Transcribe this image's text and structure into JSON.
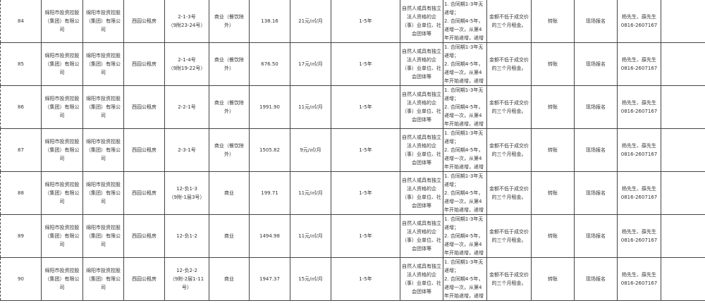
{
  "rows": [
    {
      "no": "84",
      "c1": "绵阳市投资控股（集团）有限公司",
      "c2": "绵阳市投资控股（集团）有限公司",
      "type": "西园公租房",
      "addr": "2-1-3号",
      "addr2": "（9附23-24号）",
      "use": "商业（餐饮除外）",
      "area": "138.16",
      "price": "21元/㎡/月",
      "term": "1-5年",
      "qual": "自然人或具有独立法人资格的企（事）业单位、社会团体等",
      "rent": [
        "1. 合同期1-3年无递增；",
        "2. 合同期4-5年，递增一次，从第4年开始递增，递增率5%，第5年不递增。"
      ],
      "deposit": "金额不低于成交价的三个月租金。",
      "method": "转账",
      "signup": "现场报名",
      "contact": "杨先生、薛先生",
      "phone": "0816-2607167",
      "extra": ""
    },
    {
      "no": "85",
      "c1": "绵阳市投资控股（集团）有限公司",
      "c2": "绵阳市投资控股（集团）有限公司",
      "type": "西园公租房",
      "addr": "2-1-4号",
      "addr2": "（9附19-22号）",
      "use": "商业（餐饮除外）",
      "area": "676.50",
      "price": "17元/㎡/月",
      "term": "1-5年",
      "qual": "自然人或具有独立法人资格的企（事）业单位、社会团体等",
      "rent": [
        "1. 合同期1-3年无递增；",
        "2. 合同期4-5年，递增一次，从第4年开始递增，递增率5%，第5年不递增。"
      ],
      "deposit": "金额不低于成交价的三个月租金。",
      "method": "转账",
      "signup": "现场报名",
      "contact": "杨先生、薛先生",
      "phone": "0816-2607167",
      "extra": ""
    },
    {
      "no": "86",
      "c1": "绵阳市投资控股（集团）有限公司",
      "c2": "绵阳市投资控股（集团）有限公司",
      "type": "西园公租房",
      "addr": "2-2-1号",
      "addr2": "",
      "use": "商业（餐饮除外）",
      "area": "1991.90",
      "price": "11元/㎡/月",
      "term": "1-5年",
      "qual": "自然人或具有独立法人资格的企（事）业单位、社会团体等",
      "rent": [
        "1. 合同期1-3年无递增；",
        "2. 合同期4-5年，递增一次，从第4年开始递增，递增率5%，第5年不递增。"
      ],
      "deposit": "金额不低于成交价的三个月租金。",
      "method": "转账",
      "signup": "现场报名",
      "contact": "杨先生、薛先生",
      "phone": "0816-2607167",
      "extra": ""
    },
    {
      "no": "87",
      "c1": "绵阳市投资控股（集团）有限公司",
      "c2": "绵阳市投资控股（集团）有限公司",
      "type": "西园公租房",
      "addr": "2-3-1号",
      "addr2": "",
      "use": "商业（餐饮除外）",
      "area": "1505.82",
      "price": "9元/㎡/月",
      "term": "1-5年",
      "qual": "自然人或具有独立法人资格的企（事）业单位、社会团体等",
      "rent": [
        "1. 合同期1-3年无递增；",
        "2. 合同期4-5年，递增一次，从第4年开始递增，递增率5%，第5年不递增。"
      ],
      "deposit": "金额不低于成交价的三个月租金。",
      "method": "转账",
      "signup": "现场报名",
      "contact": "杨先生、薛先生",
      "phone": "0816-2607167",
      "extra": ""
    },
    {
      "no": "88",
      "c1": "绵阳市投资控股（集团）有限公司",
      "c2": "绵阳市投资控股（集团）有限公司",
      "type": "西园公租房",
      "addr": "12-负1-3",
      "addr2": "（9附-1层3号）",
      "use": "商业",
      "area": "199.71",
      "price": "11元/㎡/月",
      "term": "1-5年",
      "qual": "自然人或具有独立法人资格的企（事）业单位、社会团体等",
      "rent": [
        "1. 合同期1-3年无递增；",
        "2. 合同期4-5年，递增一次，从第4年开始递增，递增率5%，第5年不递增。"
      ],
      "deposit": "金额不低于成交价的三个月租金。",
      "method": "转账",
      "signup": "现场报名",
      "contact": "杨先生、薛先生",
      "phone": "0816-2607167",
      "extra": ""
    },
    {
      "no": "89",
      "c1": "绵阳市投资控股（集团）有限公司",
      "c2": "绵阳市投资控股（集团）有限公司",
      "type": "西园公租房",
      "addr": "12-负1-2",
      "addr2": "",
      "use": "商业",
      "area": "1494.98",
      "price": "11元/㎡/月",
      "term": "1-5年",
      "qual": "自然人或具有独立法人资格的企（事）业单位、社会团体等",
      "rent": [
        "1. 合同期1-3年无递增；",
        "2. 合同期4-5年，递增一次，从第4年开始递增，递增率5%，第5年不递增。"
      ],
      "deposit": "金额不低于成交价的三个月租金。",
      "method": "转账",
      "signup": "现场报名",
      "contact": "杨先生、薛先生",
      "phone": "0816-2607167",
      "extra": ""
    },
    {
      "no": "90",
      "c1": "绵阳市投资控股（集团）有限公司",
      "c2": "绵阳市投资控股（集团）有限公司",
      "type": "西园公租房",
      "addr": "12-负2-2",
      "addr2": "（9附-2层1-11号）",
      "use": "商业",
      "area": "1947.37",
      "price": "15元/㎡/月",
      "term": "1-5年",
      "qual": "自然人或具有独立法人资格的企（事）业单位、社会团体等",
      "rent": [
        "1. 合同期1-3年无递增；",
        "2. 合同期4-5年，递增一次，从第4年开始递增，递增率5%，第5年不递增。"
      ],
      "deposit": "金额不低于成交价的三个月租金。",
      "method": "转账",
      "signup": "现场报名",
      "contact": "杨先生、薛先生",
      "phone": "0816-2607167",
      "extra": ""
    }
  ]
}
